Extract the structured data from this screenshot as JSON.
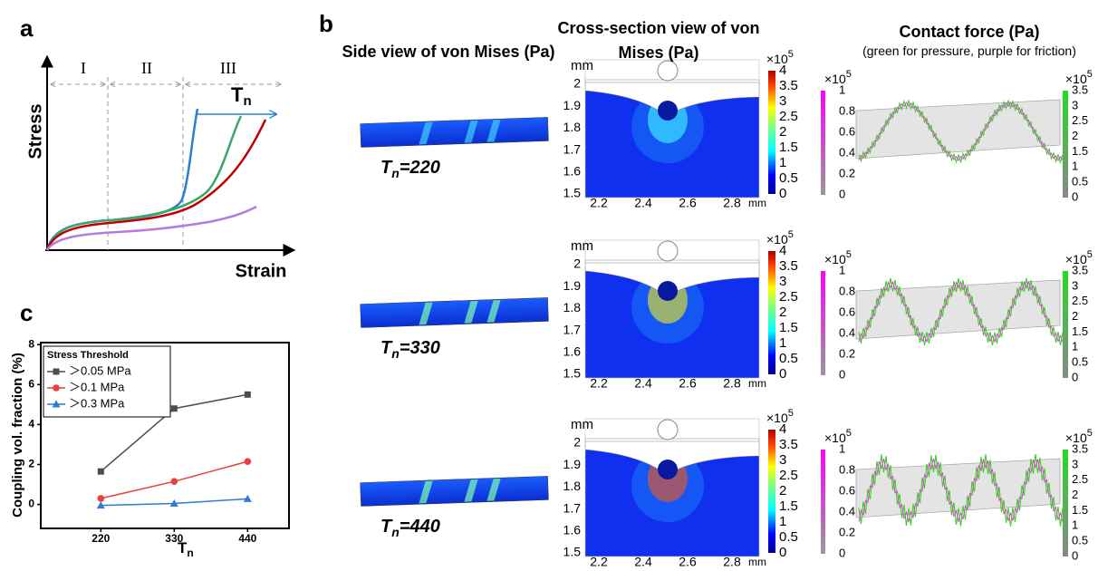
{
  "panel_labels": {
    "a": "a",
    "b": "b",
    "c": "c"
  },
  "panel_a": {
    "y_label": "Stress",
    "x_label": "Strain",
    "stages": [
      "I",
      "II",
      "III"
    ],
    "arrow_label": {
      "symbol": "T",
      "subscript": "n"
    }
  },
  "panel_b": {
    "side_title": "Side view of von Mises (Pa)",
    "cross_title": "Cross-section view of von Mises (Pa)",
    "contact_title": "Contact force (Pa)",
    "contact_subtitle": "(green for pressure, purple for friction)",
    "unit": "mm",
    "multiplier": "×10",
    "exponent": "5",
    "cross_yticks": [
      1.5,
      1.6,
      1.7,
      1.8,
      1.9,
      2
    ],
    "cross_xticks": [
      2.2,
      2.4,
      2.6,
      2.8
    ],
    "stress_ticks": [
      0,
      0.5,
      1,
      1.5,
      2,
      2.5,
      3,
      3.5,
      4
    ],
    "friction_ticks": [
      0,
      0.2,
      0.4,
      0.6,
      0.8,
      1
    ],
    "pressure_ticks": [
      0,
      0.5,
      1,
      1.5,
      2,
      2.5,
      3,
      3.5
    ],
    "rows": [
      {
        "symbol": "T",
        "subscript": "n",
        "value": "=220"
      },
      {
        "symbol": "T",
        "subscript": "n",
        "value": "=330"
      },
      {
        "symbol": "T",
        "subscript": "n",
        "value": "=440"
      }
    ]
  },
  "chart_data": {
    "type": "line",
    "y_label": "Coupling vol. fraction (%)",
    "x_label": "T",
    "x_label_subscript": "n",
    "legend_title": "Stress Threshold",
    "x": [
      220,
      330,
      440
    ],
    "xlim": [
      130,
      502
    ],
    "xticks": [
      220,
      330,
      440
    ],
    "ylim": [
      -1.2,
      8.1
    ],
    "yticks": [
      0,
      2,
      4,
      6,
      8
    ],
    "series": [
      {
        "name": "＞0.05 MPa",
        "color": "#4d4d4d",
        "marker": "square",
        "values": [
          1.65,
          4.8,
          5.5
        ]
      },
      {
        "name": "＞0.1 MPa",
        "color": "#e8403d",
        "marker": "circle",
        "values": [
          0.3,
          1.15,
          2.15
        ]
      },
      {
        "name": "＞0.3 MPa",
        "color": "#2f7bd6",
        "marker": "triangle",
        "values": [
          -0.05,
          0.05,
          0.28
        ]
      }
    ]
  }
}
